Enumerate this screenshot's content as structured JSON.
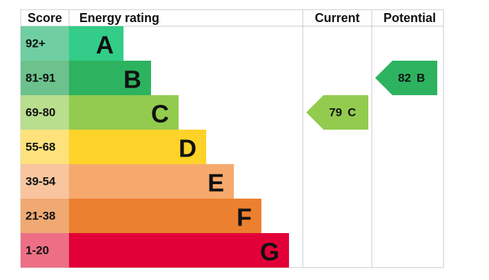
{
  "headers": {
    "score": "Score",
    "rating": "Energy rating",
    "current": "Current",
    "potential": "Potential"
  },
  "bands": [
    {
      "score": "92+",
      "letter": "A",
      "color": "#33cc88",
      "score_color": "#70cfa2"
    },
    {
      "score": "81-91",
      "letter": "B",
      "color": "#2db35f",
      "score_color": "#6cc18c"
    },
    {
      "score": "69-80",
      "letter": "C",
      "color": "#93cb4f",
      "score_color": "#b9de8d"
    },
    {
      "score": "55-68",
      "letter": "D",
      "color": "#fdd32a",
      "score_color": "#fde27b"
    },
    {
      "score": "39-54",
      "letter": "E",
      "color": "#f6a96c",
      "score_color": "#f8c59e"
    },
    {
      "score": "21-38",
      "letter": "F",
      "color": "#ec8031",
      "score_color": "#f0a972"
    },
    {
      "score": "1-20",
      "letter": "G",
      "color": "#e20038",
      "score_color": "#ec6f85"
    }
  ],
  "current": {
    "value": 79,
    "letter": "C"
  },
  "potential": {
    "value": 82,
    "letter": "B"
  }
}
